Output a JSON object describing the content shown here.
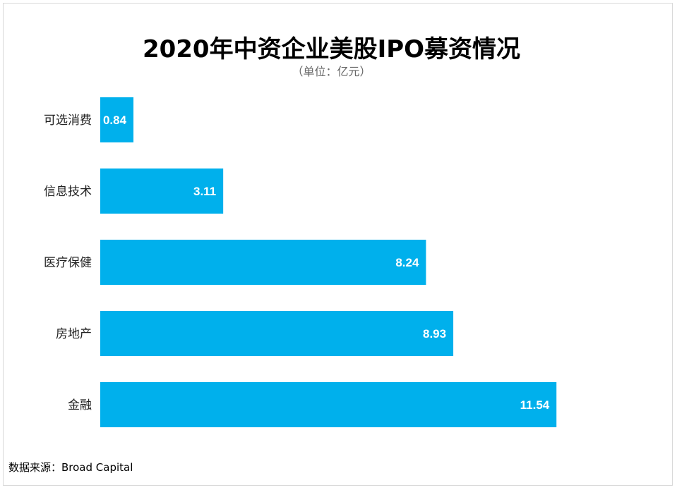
{
  "header": {
    "title": "2020年中资企业美股IPO募资情况",
    "subtitle": "（单位：亿元）"
  },
  "footer": {
    "source": "数据来源：Broad Capital"
  },
  "colors": {
    "bar": "#00b0ec"
  },
  "chart_data": {
    "type": "bar",
    "orientation": "horizontal",
    "title": "2020年中资企业美股IPO募资情况",
    "subtitle": "（单位：亿元）",
    "categories": [
      "可选消费",
      "信息技术",
      "医疗保健",
      "房地产",
      "金融"
    ],
    "values": [
      0.84,
      3.11,
      8.24,
      8.93,
      11.54
    ],
    "value_labels": [
      "0.84",
      "3.11",
      "8.24",
      "8.93",
      "11.54"
    ],
    "xlabel": "",
    "ylabel": "",
    "xlim": [
      0,
      12
    ],
    "grid": false,
    "legend": "none",
    "data_labels": "inside-end"
  }
}
